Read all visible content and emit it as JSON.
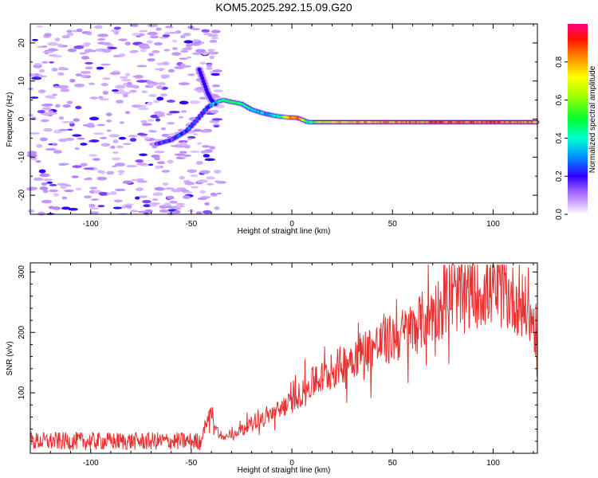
{
  "figure_title": "KOM5.2025.292.15.09.G20",
  "chart_data": [
    {
      "type": "heatmap",
      "title": "KOM5.2025.292.15.09.G20",
      "xlabel": "Height of straight line (km)",
      "ylabel": "Frequency (Hz)",
      "xlim": [
        -130,
        122
      ],
      "ylim": [
        -25,
        25
      ],
      "xticks": [
        -100,
        -50,
        0,
        50,
        100
      ],
      "xtick_labels": [
        "-100",
        "-50",
        "0",
        "50",
        "100"
      ],
      "yticks": [
        -20,
        -10,
        0,
        10,
        20
      ],
      "ytick_labels": [
        "-20",
        "-10",
        "0",
        "10",
        "20"
      ],
      "colorbar": {
        "label": "Normalized spectral amplitude",
        "range": [
          0,
          1
        ],
        "ticks": [
          0.0,
          0.2,
          0.4,
          0.6,
          0.8
        ],
        "tick_labels": [
          "0.0",
          "0.2",
          "0.4",
          "0.6",
          "0.8"
        ],
        "colormap": "rainbow"
      },
      "ridge": {
        "description": "dominant frequency track",
        "x": [
          -67,
          -60,
          -52,
          -46,
          -42,
          -38,
          -34,
          -30,
          -25,
          -20,
          -14,
          -8,
          -3,
          3,
          8,
          14,
          25,
          50,
          75,
          100,
          122
        ],
        "freq": [
          -6.5,
          -5.5,
          -3.0,
          0.5,
          3.0,
          4.5,
          5.0,
          4.5,
          4.0,
          2.5,
          1.5,
          0.8,
          0.5,
          0.3,
          -0.8,
          -0.8,
          -0.8,
          -0.8,
          -0.8,
          -0.8,
          -0.8
        ],
        "amplitude": [
          0.15,
          0.2,
          0.25,
          0.2,
          0.25,
          0.35,
          0.45,
          0.5,
          0.45,
          0.4,
          0.35,
          0.35,
          0.7,
          0.9,
          0.35,
          0.65,
          0.75,
          0.8,
          0.85,
          0.85,
          0.8
        ]
      },
      "branch": {
        "description": "upward feature near -45 km",
        "x": [
          -46,
          -44,
          -42,
          -40,
          -38
        ],
        "freq": [
          13,
          10,
          7,
          5,
          4
        ]
      },
      "noise_region": [
        -130,
        -40
      ]
    },
    {
      "type": "line",
      "xlabel": "Height of straight line (km)",
      "ylabel": "SNR (v/v)",
      "xlim": [
        -130,
        122
      ],
      "ylim": [
        0,
        315
      ],
      "xticks": [
        -100,
        -50,
        0,
        50,
        100
      ],
      "xtick_labels": [
        "-100",
        "-50",
        "0",
        "50",
        "100"
      ],
      "yticks": [
        100,
        200,
        300
      ],
      "ytick_labels": [
        "100",
        "200",
        "300"
      ],
      "color": "#e83030",
      "series": [
        {
          "name": "SNR",
          "x": [
            -130,
            -110,
            -90,
            -70,
            -55,
            -45,
            -40,
            -38,
            -35,
            -30,
            -20,
            -10,
            0,
            10,
            20,
            30,
            40,
            50,
            60,
            70,
            80,
            90,
            100,
            110,
            115,
            120,
            122
          ],
          "values": [
            20,
            20,
            20,
            20,
            22,
            25,
            70,
            45,
            25,
            30,
            50,
            65,
            85,
            115,
            135,
            160,
            175,
            190,
            205,
            235,
            255,
            265,
            270,
            255,
            245,
            215,
            195
          ]
        }
      ]
    }
  ]
}
